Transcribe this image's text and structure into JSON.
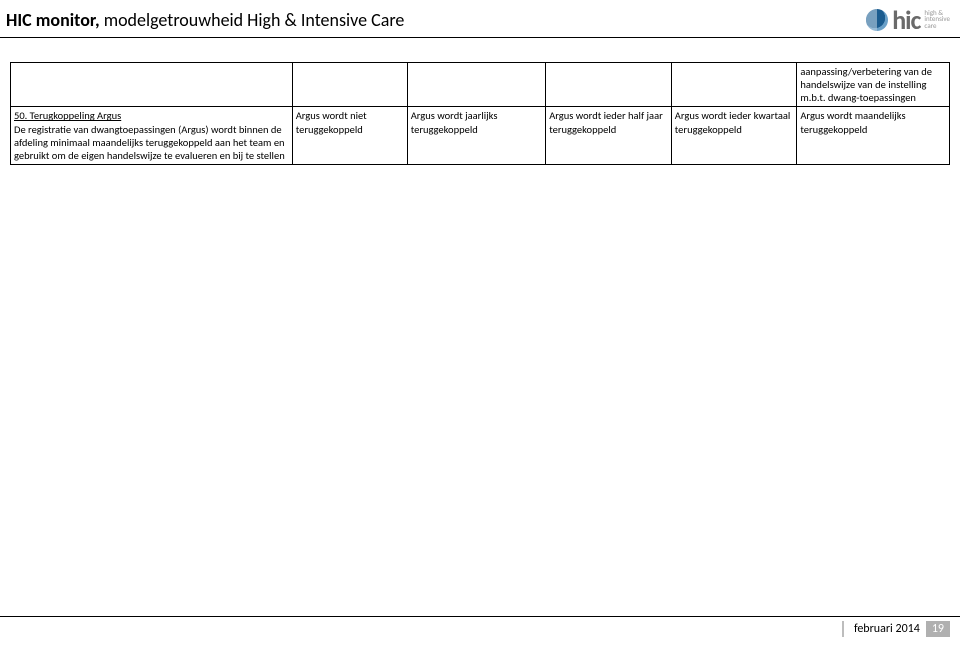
{
  "header": {
    "title_bold": "HIC monitor, ",
    "title_light": "modelgetrouwheid High & Intensive Care"
  },
  "logo": {
    "letters": "hic",
    "tag1": "high &",
    "tag2": "intensive",
    "tag3": "care"
  },
  "table": {
    "row1": {
      "c1": "",
      "c2": "",
      "c3": "",
      "c4": "",
      "c5": "",
      "c6": "aanpassing/verbetering van de handelswijze van de instelling m.b.t. dwang-toepassingen"
    },
    "row2": {
      "c1_title": "50. Terugkoppeling Argus",
      "c1_body": "De registratie van dwangtoepassingen (Argus) wordt binnen de afdeling minimaal maandelijks teruggekoppeld aan het team en gebruikt om de eigen handelswijze te evalueren en bij te stellen",
      "c2": "Argus wordt niet teruggekoppeld",
      "c3": "Argus wordt jaarlijks teruggekoppeld",
      "c4": "Argus wordt ieder half jaar teruggekoppeld",
      "c5": "Argus wordt ieder kwartaal teruggekoppeld",
      "c6": "Argus wordt maandelijks teruggekoppeld"
    }
  },
  "footer": {
    "date": "februari 2014",
    "page": "19"
  }
}
